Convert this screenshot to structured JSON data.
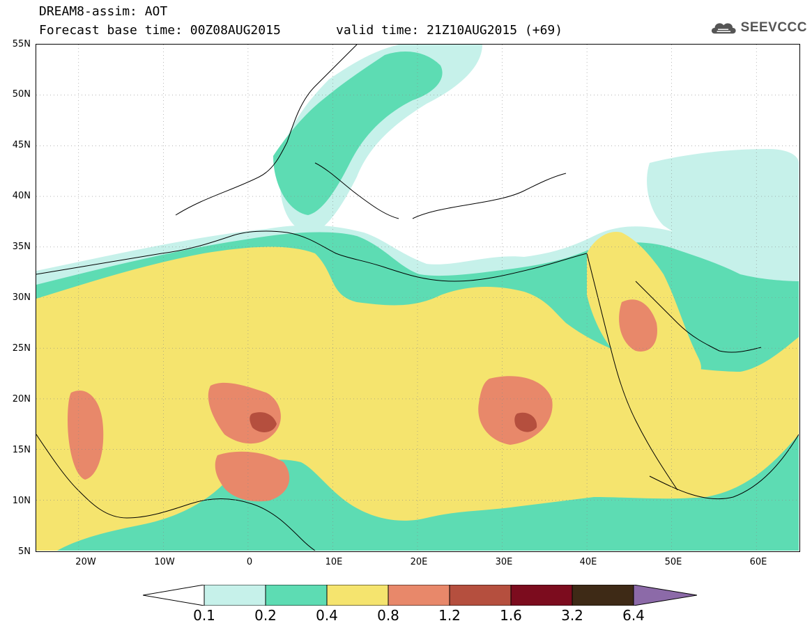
{
  "header": {
    "title": "DREAM8-assim: AOT",
    "base_time": "Forecast base time: 00Z08AUG2015",
    "valid_time": "valid time: 21Z10AUG2015 (+69)"
  },
  "logo": {
    "text": "SEEVCCC",
    "icon": "cloud-icon"
  },
  "map": {
    "lat_labels": [
      "55N",
      "50N",
      "45N",
      "40N",
      "35N",
      "30N",
      "25N",
      "20N",
      "15N",
      "10N",
      "5N"
    ],
    "lon_labels": [
      "20W",
      "10W",
      "0",
      "10E",
      "20E",
      "30E",
      "40E",
      "50E",
      "60E"
    ],
    "extent": {
      "lon_min": -25,
      "lon_max": 65,
      "lat_min": 5,
      "lat_max": 55
    },
    "grid": "dotted"
  },
  "legend": {
    "levels": [
      "0.1",
      "0.2",
      "0.4",
      "0.8",
      "1.2",
      "1.6",
      "3.2",
      "6.4"
    ],
    "colors": [
      "#ffffff",
      "#c6f1ea",
      "#5ddcb3",
      "#f5e46e",
      "#e8886a",
      "#b54f3e",
      "#7c0c1e",
      "#3e2a16",
      "#8c6aa8"
    ]
  }
}
